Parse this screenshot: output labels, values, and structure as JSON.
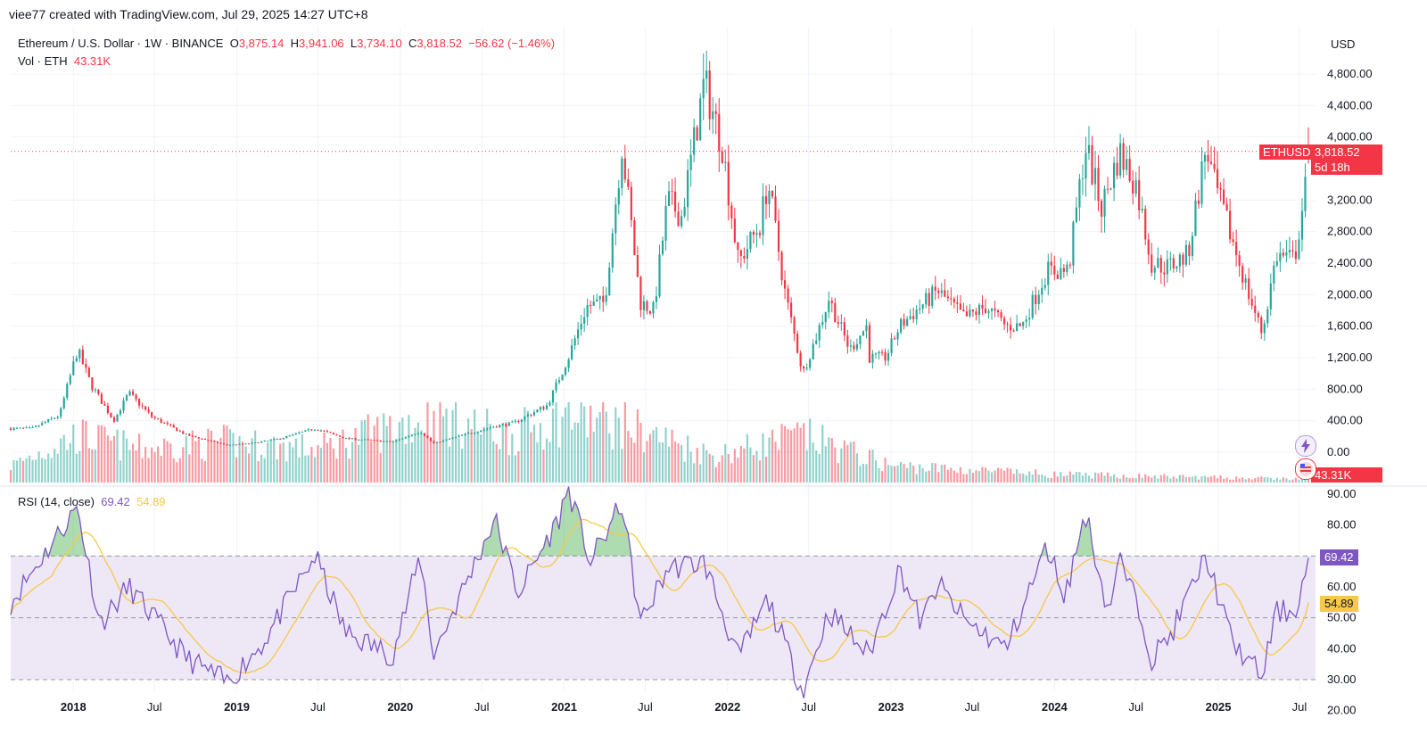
{
  "header": {
    "attribution": "viee77 created with TradingView.com, Jul 29, 2025 14:27 UTC+8"
  },
  "legend": {
    "symbol": "Ethereum / U.S. Dollar · 1W · BINANCE",
    "o_label": "O",
    "o_value": "3,875.14",
    "h_label": "H",
    "h_value": "3,941.06",
    "l_label": "L",
    "l_value": "3,734.10",
    "c_label": "C",
    "c_value": "3,818.52",
    "change": "−56.62 (−1.46%)",
    "vol_label": "Vol · ETH",
    "vol_value": "43.31K",
    "rsi_label": "RSI (14, close)",
    "rsi_value": "69.42",
    "rsi_ma_value": "54.89"
  },
  "axis": {
    "currency": "USD",
    "price_ticks": [
      "4,800.00",
      "4,400.00",
      "4,000.00",
      "3,200.00",
      "2,800.00",
      "2,400.00",
      "2,000.00",
      "1,600.00",
      "1,200.00",
      "800.00",
      "400.00",
      "0.00"
    ],
    "rsi_ticks": [
      "90.00",
      "80.00",
      "60.00",
      "50.00",
      "40.00",
      "30.00",
      "20.00"
    ],
    "time_ticks": [
      {
        "label": "2018",
        "bold": true
      },
      {
        "label": "Jul",
        "bold": false
      },
      {
        "label": "2019",
        "bold": true
      },
      {
        "label": "Jul",
        "bold": false
      },
      {
        "label": "2020",
        "bold": true
      },
      {
        "label": "Jul",
        "bold": false
      },
      {
        "label": "2021",
        "bold": true
      },
      {
        "label": "Jul",
        "bold": false
      },
      {
        "label": "2022",
        "bold": true
      },
      {
        "label": "Jul",
        "bold": false
      },
      {
        "label": "2023",
        "bold": true
      },
      {
        "label": "Jul",
        "bold": false
      },
      {
        "label": "2024",
        "bold": true
      },
      {
        "label": "Jul",
        "bold": false
      },
      {
        "label": "2025",
        "bold": true
      },
      {
        "label": "Jul",
        "bold": false
      }
    ]
  },
  "tags": {
    "symbol": "ETHUSD",
    "last_price": "3,818.52",
    "countdown": "5d 18h",
    "volume": "43.31K",
    "rsi": "69.42",
    "rsi_ma": "54.89"
  },
  "colors": {
    "up": "#26a69a",
    "down": "#f23645",
    "rsi": "#7e57c2",
    "rsi_ma": "#f7c948",
    "rsi_band": "#ede7f6",
    "grid": "#f0f3fa"
  },
  "icons": [
    "lightning-icon",
    "flag-currency-icon"
  ],
  "chart_data": [
    {
      "type": "candlestick",
      "title": "Ethereum / U.S. Dollar · 1W · BINANCE",
      "interval": "1W",
      "ylim": [
        0,
        5000
      ],
      "xrange": [
        "2017-08",
        "2025-07"
      ],
      "anchors": [
        [
          "2017-08-14",
          300
        ],
        [
          "2017-10-01",
          300
        ],
        [
          "2017-12-01",
          470
        ],
        [
          "2018-01-10",
          1300
        ],
        [
          "2018-02-10",
          850
        ],
        [
          "2018-04-01",
          400
        ],
        [
          "2018-05-05",
          750
        ],
        [
          "2018-06-25",
          450
        ],
        [
          "2018-09-10",
          220
        ],
        [
          "2018-12-10",
          90
        ],
        [
          "2019-02-01",
          110
        ],
        [
          "2019-04-01",
          165
        ],
        [
          "2019-06-25",
          300
        ],
        [
          "2019-09-01",
          175
        ],
        [
          "2019-12-15",
          130
        ],
        [
          "2020-02-15",
          265
        ],
        [
          "2020-03-15",
          110
        ],
        [
          "2020-05-15",
          210
        ],
        [
          "2020-07-30",
          330
        ],
        [
          "2020-09-10",
          370
        ],
        [
          "2020-11-25",
          600
        ],
        [
          "2021-01-10",
          1200
        ],
        [
          "2021-02-20",
          1850
        ],
        [
          "2021-04-01",
          1900
        ],
        [
          "2021-05-10",
          3900
        ],
        [
          "2021-06-20",
          1900
        ],
        [
          "2021-07-20",
          1800
        ],
        [
          "2021-08-20",
          3200
        ],
        [
          "2021-09-20",
          3000
        ],
        [
          "2021-11-10",
          4700
        ],
        [
          "2021-12-20",
          3900
        ],
        [
          "2022-01-25",
          2400
        ],
        [
          "2022-03-15",
          2900
        ],
        [
          "2022-04-01",
          3450
        ],
        [
          "2022-05-10",
          2000
        ],
        [
          "2022-06-18",
          1000
        ],
        [
          "2022-07-20",
          1500
        ],
        [
          "2022-08-15",
          1950
        ],
        [
          "2022-10-01",
          1300
        ],
        [
          "2022-11-07",
          1600
        ],
        [
          "2022-11-12",
          1200
        ],
        [
          "2022-12-20",
          1200
        ],
        [
          "2023-01-20",
          1600
        ],
        [
          "2023-04-15",
          2050
        ],
        [
          "2023-06-15",
          1700
        ],
        [
          "2023-08-01",
          1850
        ],
        [
          "2023-09-15",
          1600
        ],
        [
          "2023-10-20",
          1600
        ],
        [
          "2023-12-15",
          2300
        ],
        [
          "2024-02-01",
          2300
        ],
        [
          "2024-03-10",
          3900
        ],
        [
          "2024-04-15",
          3100
        ],
        [
          "2024-05-25",
          3800
        ],
        [
          "2024-07-01",
          3400
        ],
        [
          "2024-08-05",
          2400
        ],
        [
          "2024-09-10",
          2350
        ],
        [
          "2024-10-25",
          2500
        ],
        [
          "2024-12-05",
          3900
        ],
        [
          "2024-12-20",
          3450
        ],
        [
          "2025-02-01",
          2700
        ],
        [
          "2025-03-10",
          2000
        ],
        [
          "2025-04-09",
          1500
        ],
        [
          "2025-05-10",
          2500
        ],
        [
          "2025-06-20",
          2450
        ],
        [
          "2025-07-27",
          3818.52
        ]
      ],
      "last_bar": {
        "o": 3875.14,
        "h": 3941.06,
        "l": 3734.1,
        "c": 3818.52,
        "change": -56.62,
        "change_pct": -1.46
      }
    },
    {
      "type": "bar",
      "title": "Vol · ETH",
      "last_value": "43.31K",
      "anchors": [
        [
          "2017-08-14",
          0.25
        ],
        [
          "2018-01-10",
          0.7
        ],
        [
          "2018-06-01",
          0.5
        ],
        [
          "2018-12-01",
          0.6
        ],
        [
          "2019-07-01",
          0.5
        ],
        [
          "2020-03-15",
          1.0
        ],
        [
          "2020-09-01",
          0.7
        ],
        [
          "2021-01-10",
          1.0
        ],
        [
          "2021-05-15",
          0.85
        ],
        [
          "2021-12-01",
          0.4
        ],
        [
          "2022-06-18",
          0.7
        ],
        [
          "2023-01-01",
          0.25
        ],
        [
          "2024-01-01",
          0.12
        ],
        [
          "2025-07-27",
          0.05
        ]
      ]
    },
    {
      "type": "line",
      "title": "RSI (14, close)",
      "ylim": [
        20,
        90
      ],
      "bands": [
        30,
        50,
        70
      ],
      "series": [
        {
          "name": "RSI",
          "last": 69.42
        },
        {
          "name": "RSI-based MA",
          "last": 54.89
        }
      ],
      "anchors": [
        [
          "2017-08-14",
          55
        ],
        [
          "2018-01-10",
          86
        ],
        [
          "2018-03-01",
          48
        ],
        [
          "2018-05-05",
          60
        ],
        [
          "2018-09-10",
          37
        ],
        [
          "2018-12-10",
          29
        ],
        [
          "2019-03-01",
          42
        ],
        [
          "2019-06-25",
          70
        ],
        [
          "2019-09-01",
          45
        ],
        [
          "2019-12-15",
          38
        ],
        [
          "2020-02-15",
          70
        ],
        [
          "2020-03-15",
          38
        ],
        [
          "2020-07-30",
          82
        ],
        [
          "2020-09-20",
          58
        ],
        [
          "2020-12-20",
          82
        ],
        [
          "2021-01-10",
          92
        ],
        [
          "2021-03-01",
          68
        ],
        [
          "2021-05-10",
          87
        ],
        [
          "2021-06-20",
          48
        ],
        [
          "2021-08-20",
          66
        ],
        [
          "2021-11-10",
          68
        ],
        [
          "2022-01-25",
          37
        ],
        [
          "2022-04-01",
          56
        ],
        [
          "2022-06-18",
          26
        ],
        [
          "2022-08-15",
          52
        ],
        [
          "2022-11-12",
          38
        ],
        [
          "2023-01-20",
          66
        ],
        [
          "2023-03-10",
          48
        ],
        [
          "2023-04-15",
          61
        ],
        [
          "2023-06-15",
          49
        ],
        [
          "2023-09-15",
          40
        ],
        [
          "2023-12-15",
          73
        ],
        [
          "2024-01-25",
          57
        ],
        [
          "2024-03-10",
          84
        ],
        [
          "2024-04-30",
          52
        ],
        [
          "2024-05-25",
          69
        ],
        [
          "2024-07-15",
          50
        ],
        [
          "2024-08-05",
          37
        ],
        [
          "2024-09-15",
          44
        ],
        [
          "2024-12-05",
          70
        ],
        [
          "2025-02-01",
          42
        ],
        [
          "2025-04-09",
          31
        ],
        [
          "2025-05-10",
          52
        ],
        [
          "2025-06-20",
          52
        ],
        [
          "2025-07-27",
          69.42
        ]
      ]
    }
  ]
}
